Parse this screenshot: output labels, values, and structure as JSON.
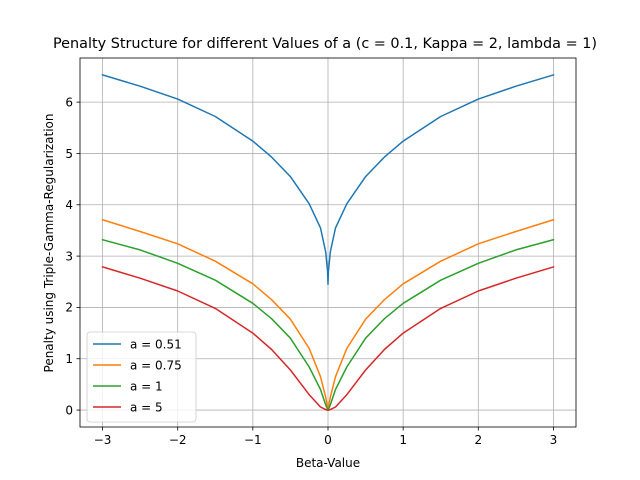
{
  "chart_data": {
    "type": "line",
    "title": "Penalty Structure for different Values of a (c = 0.1, Kappa = 2, lambda = 1)",
    "xlabel": "Beta-Value",
    "ylabel": "Penalty using Triple-Gamma-Regularization",
    "xlim": [
      -3.3,
      3.3
    ],
    "ylim": [
      -0.33,
      6.86
    ],
    "xticks": [
      -3,
      -2,
      -1,
      0,
      1,
      2,
      3
    ],
    "xtick_labels": [
      "−3",
      "−2",
      "−1",
      "0",
      "1",
      "2",
      "3"
    ],
    "yticks": [
      0,
      1,
      2,
      3,
      4,
      5,
      6
    ],
    "ytick_labels": [
      "0",
      "1",
      "2",
      "3",
      "4",
      "5",
      "6"
    ],
    "grid": true,
    "legend_position": "lower-left",
    "x": [
      -3,
      -2.5,
      -2,
      -1.5,
      -1,
      -0.75,
      -0.5,
      -0.25,
      -0.1,
      -0.03,
      -0.005,
      0,
      0.005,
      0.03,
      0.1,
      0.25,
      0.5,
      0.75,
      1,
      1.5,
      2,
      2.5,
      3
    ],
    "series": [
      {
        "name": "a = 0.51",
        "color": "#1f77b4",
        "values": [
          6.53,
          6.31,
          6.06,
          5.72,
          5.24,
          4.93,
          4.55,
          4.02,
          3.55,
          3.08,
          2.7,
          2.45,
          2.7,
          3.08,
          3.55,
          4.02,
          4.55,
          4.93,
          5.24,
          5.72,
          6.06,
          6.31,
          6.53
        ]
      },
      {
        "name": "a = 0.75",
        "color": "#ff7f0e",
        "values": [
          3.71,
          3.48,
          3.24,
          2.9,
          2.46,
          2.15,
          1.77,
          1.2,
          0.65,
          0.25,
          0.05,
          0,
          0.05,
          0.25,
          0.65,
          1.2,
          1.77,
          2.15,
          2.46,
          2.9,
          3.24,
          3.48,
          3.71
        ]
      },
      {
        "name": "a = 1",
        "color": "#2ca02c",
        "values": [
          3.32,
          3.12,
          2.86,
          2.53,
          2.08,
          1.78,
          1.4,
          0.84,
          0.4,
          0.1,
          0.01,
          0,
          0.01,
          0.1,
          0.4,
          0.84,
          1.4,
          1.78,
          2.08,
          2.53,
          2.86,
          3.12,
          3.32
        ]
      },
      {
        "name": "a = 5",
        "color": "#d62728",
        "values": [
          2.79,
          2.57,
          2.32,
          1.98,
          1.5,
          1.18,
          0.78,
          0.3,
          0.06,
          0.01,
          0,
          0,
          0,
          0.01,
          0.06,
          0.3,
          0.78,
          1.18,
          1.5,
          1.98,
          2.32,
          2.57,
          2.79
        ]
      }
    ]
  }
}
